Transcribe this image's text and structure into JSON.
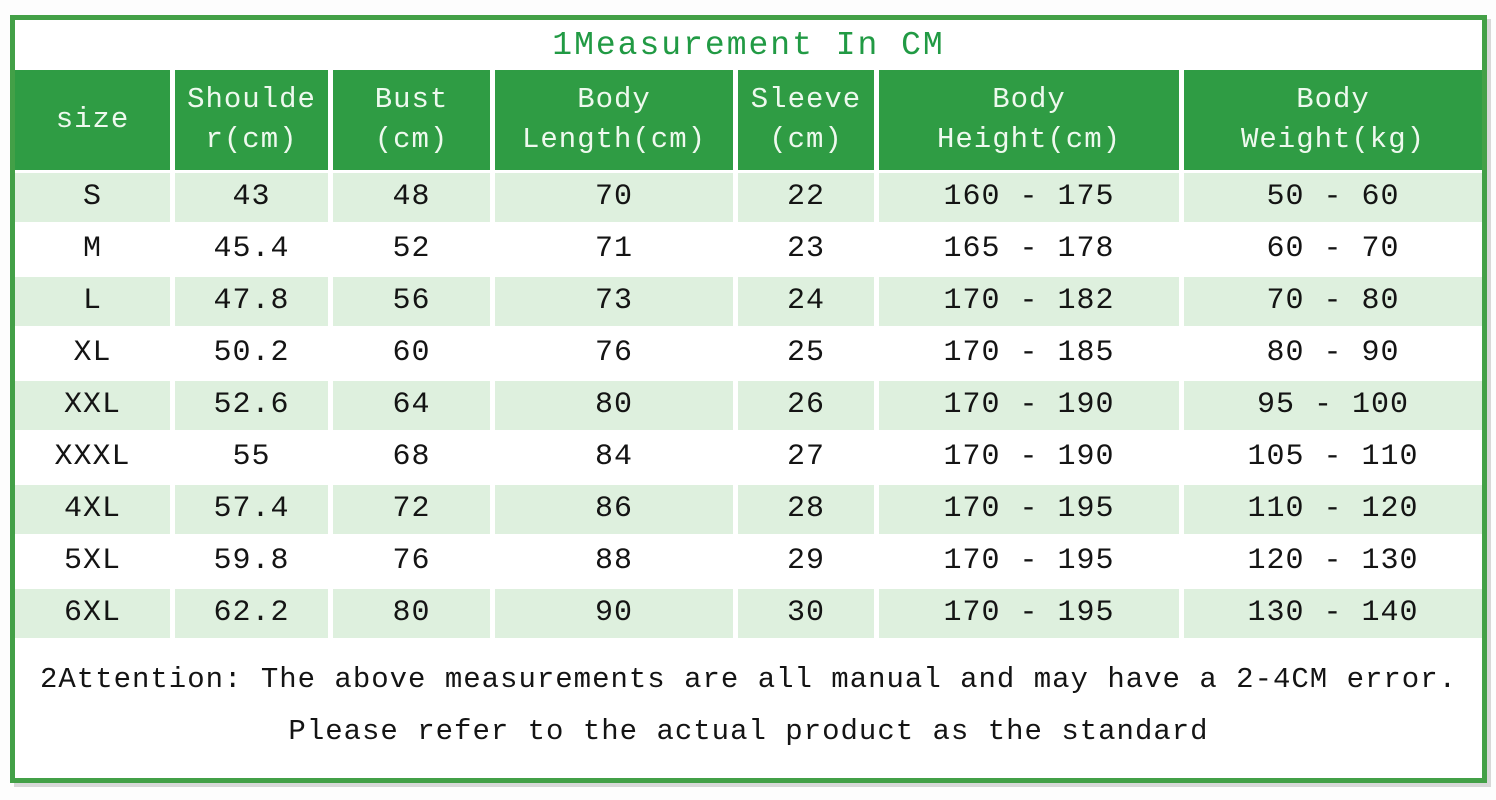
{
  "title": "1Measurement In CM",
  "colors": {
    "border_green": "#43a047",
    "header_green": "#2f9c44",
    "title_green": "#219a44",
    "row_light_green": "#def0de",
    "text_dark": "#141414"
  },
  "table": {
    "columns": [
      {
        "id": "size",
        "lines": [
          "size"
        ]
      },
      {
        "id": "shoulder",
        "lines": [
          "Shoulde",
          "r(cm)"
        ]
      },
      {
        "id": "bust",
        "lines": [
          "Bust",
          "(cm)"
        ]
      },
      {
        "id": "body-length",
        "lines": [
          "Body",
          "Length(cm)"
        ]
      },
      {
        "id": "sleeve",
        "lines": [
          "Sleeve",
          "(cm)"
        ]
      },
      {
        "id": "body-height",
        "lines": [
          "Body",
          "Height(cm)"
        ]
      },
      {
        "id": "body-weight",
        "lines": [
          "Body",
          "Weight(kg)"
        ]
      }
    ],
    "rows": [
      [
        "S",
        "43",
        "48",
        "70",
        "22",
        "160 - 175",
        "50 - 60"
      ],
      [
        "M",
        "45.4",
        "52",
        "71",
        "23",
        "165 - 178",
        "60 - 70"
      ],
      [
        "L",
        "47.8",
        "56",
        "73",
        "24",
        "170 - 182",
        "70 - 80"
      ],
      [
        "XL",
        "50.2",
        "60",
        "76",
        "25",
        "170 - 185",
        "80 - 90"
      ],
      [
        "XXL",
        "52.6",
        "64",
        "80",
        "26",
        "170 - 190",
        "95 - 100"
      ],
      [
        "XXXL",
        "55",
        "68",
        "84",
        "27",
        "170 - 190",
        "105 - 110"
      ],
      [
        "4XL",
        "57.4",
        "72",
        "86",
        "28",
        "170 - 195",
        "110 - 120"
      ],
      [
        "5XL",
        "59.8",
        "76",
        "88",
        "29",
        "170 - 195",
        "120 - 130"
      ],
      [
        "6XL",
        "62.2",
        "80",
        "90",
        "30",
        "170 - 195",
        "130 - 140"
      ]
    ]
  },
  "footer": {
    "line1": "2Attention: The above measurements are all manual and may have a 2-4CM error.",
    "line2": "Please refer to the actual product as the standard"
  },
  "chart_data": {
    "type": "table",
    "title": "1Measurement In CM",
    "columns": [
      "size",
      "Shoulder(cm)",
      "Bust (cm)",
      "Body Length(cm)",
      "Sleeve (cm)",
      "Body Height(cm)",
      "Body Weight(kg)"
    ],
    "rows": [
      [
        "S",
        43,
        48,
        70,
        22,
        "160 - 175",
        "50 - 60"
      ],
      [
        "M",
        45.4,
        52,
        71,
        23,
        "165 - 178",
        "60 - 70"
      ],
      [
        "L",
        47.8,
        56,
        73,
        24,
        "170 - 182",
        "70 - 80"
      ],
      [
        "XL",
        50.2,
        60,
        76,
        25,
        "170 - 185",
        "80 - 90"
      ],
      [
        "XXL",
        52.6,
        64,
        80,
        26,
        "170 - 190",
        "95 - 100"
      ],
      [
        "XXXL",
        55,
        68,
        84,
        27,
        "170 - 190",
        "105 - 110"
      ],
      [
        "4XL",
        57.4,
        72,
        86,
        28,
        "170 - 195",
        "110 - 120"
      ],
      [
        "5XL",
        59.8,
        76,
        88,
        29,
        "170 - 195",
        "120 - 130"
      ],
      [
        "6XL",
        62.2,
        80,
        90,
        30,
        "170 - 195",
        "130 - 140"
      ]
    ],
    "notes": [
      "2Attention: The above measurements are all manual and may have a 2-4CM error.",
      "Please refer to the actual product as the standard"
    ],
    "layout": {
      "alternating_row_shading": true,
      "header_background": "#2f9c44",
      "shaded_row_background": "#def0de"
    }
  }
}
